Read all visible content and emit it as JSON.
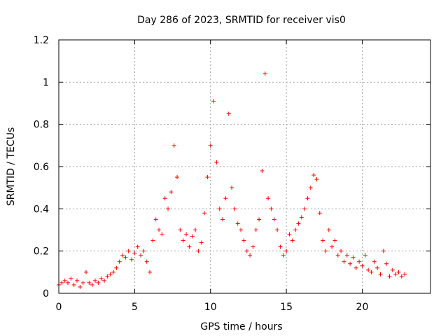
{
  "chart_data": {
    "type": "scatter",
    "title": "Day 286 of 2023, SRMTID for receiver vis0",
    "xlabel": "GPS time / hours",
    "ylabel": "SRMTID / TECUs",
    "xlim": [
      0,
      24.5
    ],
    "ylim": [
      0,
      1.2
    ],
    "grid": true,
    "marker": "+",
    "x_ticks": [
      0,
      5,
      10,
      15,
      20
    ],
    "x_tick_labels": [
      "0",
      "5",
      "10",
      "15",
      "20"
    ],
    "y_ticks": [
      0,
      0.2,
      0.4,
      0.6,
      0.8,
      1.0,
      1.2
    ],
    "y_tick_labels": [
      "0",
      "0.2",
      "0.4",
      "0.6",
      "0.8",
      "1",
      "1.2"
    ],
    "series": [
      {
        "name": "SRMTID",
        "color": "#ff0000",
        "points": [
          [
            0.0,
            0.04
          ],
          [
            0.2,
            0.05
          ],
          [
            0.4,
            0.06
          ],
          [
            0.6,
            0.05
          ],
          [
            0.8,
            0.07
          ],
          [
            1.0,
            0.04
          ],
          [
            1.2,
            0.06
          ],
          [
            1.4,
            0.03
          ],
          [
            1.6,
            0.05
          ],
          [
            1.8,
            0.1
          ],
          [
            2.0,
            0.05
          ],
          [
            2.2,
            0.04
          ],
          [
            2.4,
            0.06
          ],
          [
            2.6,
            0.05
          ],
          [
            2.8,
            0.07
          ],
          [
            3.0,
            0.06
          ],
          [
            3.2,
            0.08
          ],
          [
            3.4,
            0.09
          ],
          [
            3.6,
            0.1
          ],
          [
            3.8,
            0.12
          ],
          [
            4.0,
            0.15
          ],
          [
            4.2,
            0.18
          ],
          [
            4.4,
            0.17
          ],
          [
            4.6,
            0.2
          ],
          [
            4.8,
            0.16
          ],
          [
            5.0,
            0.19
          ],
          [
            5.2,
            0.22
          ],
          [
            5.4,
            0.18
          ],
          [
            5.6,
            0.2
          ],
          [
            5.8,
            0.15
          ],
          [
            6.0,
            0.1
          ],
          [
            6.2,
            0.25
          ],
          [
            6.4,
            0.35
          ],
          [
            6.6,
            0.3
          ],
          [
            6.8,
            0.28
          ],
          [
            7.0,
            0.45
          ],
          [
            7.2,
            0.4
          ],
          [
            7.4,
            0.48
          ],
          [
            7.6,
            0.7
          ],
          [
            7.8,
            0.55
          ],
          [
            8.0,
            0.3
          ],
          [
            8.2,
            0.25
          ],
          [
            8.4,
            0.28
          ],
          [
            8.6,
            0.22
          ],
          [
            8.8,
            0.27
          ],
          [
            9.0,
            0.3
          ],
          [
            9.2,
            0.2
          ],
          [
            9.4,
            0.24
          ],
          [
            9.6,
            0.38
          ],
          [
            9.8,
            0.55
          ],
          [
            10.0,
            0.7
          ],
          [
            10.2,
            0.91
          ],
          [
            10.4,
            0.62
          ],
          [
            10.6,
            0.4
          ],
          [
            10.8,
            0.35
          ],
          [
            11.0,
            0.45
          ],
          [
            11.2,
            0.85
          ],
          [
            11.4,
            0.5
          ],
          [
            11.6,
            0.4
          ],
          [
            11.8,
            0.33
          ],
          [
            12.0,
            0.3
          ],
          [
            12.2,
            0.25
          ],
          [
            12.4,
            0.2
          ],
          [
            12.6,
            0.18
          ],
          [
            12.8,
            0.22
          ],
          [
            13.0,
            0.3
          ],
          [
            13.2,
            0.35
          ],
          [
            13.4,
            0.58
          ],
          [
            13.6,
            1.04
          ],
          [
            13.8,
            0.45
          ],
          [
            14.0,
            0.4
          ],
          [
            14.2,
            0.35
          ],
          [
            14.4,
            0.3
          ],
          [
            14.6,
            0.22
          ],
          [
            14.8,
            0.18
          ],
          [
            15.0,
            0.2
          ],
          [
            15.2,
            0.28
          ],
          [
            15.4,
            0.25
          ],
          [
            15.6,
            0.3
          ],
          [
            15.8,
            0.33
          ],
          [
            16.0,
            0.36
          ],
          [
            16.2,
            0.4
          ],
          [
            16.4,
            0.45
          ],
          [
            16.6,
            0.5
          ],
          [
            16.8,
            0.56
          ],
          [
            17.0,
            0.54
          ],
          [
            17.2,
            0.38
          ],
          [
            17.4,
            0.25
          ],
          [
            17.6,
            0.2
          ],
          [
            17.8,
            0.3
          ],
          [
            18.0,
            0.22
          ],
          [
            18.2,
            0.25
          ],
          [
            18.4,
            0.18
          ],
          [
            18.6,
            0.2
          ],
          [
            18.8,
            0.15
          ],
          [
            19.0,
            0.18
          ],
          [
            19.2,
            0.14
          ],
          [
            19.4,
            0.17
          ],
          [
            19.6,
            0.12
          ],
          [
            19.8,
            0.15
          ],
          [
            20.0,
            0.13
          ],
          [
            20.2,
            0.18
          ],
          [
            20.4,
            0.11
          ],
          [
            20.6,
            0.1
          ],
          [
            20.8,
            0.15
          ],
          [
            21.0,
            0.12
          ],
          [
            21.2,
            0.09
          ],
          [
            21.4,
            0.2
          ],
          [
            21.6,
            0.14
          ],
          [
            21.8,
            0.08
          ],
          [
            22.0,
            0.11
          ],
          [
            22.2,
            0.09
          ],
          [
            22.4,
            0.1
          ],
          [
            22.6,
            0.08
          ],
          [
            22.8,
            0.09
          ]
        ]
      }
    ]
  }
}
